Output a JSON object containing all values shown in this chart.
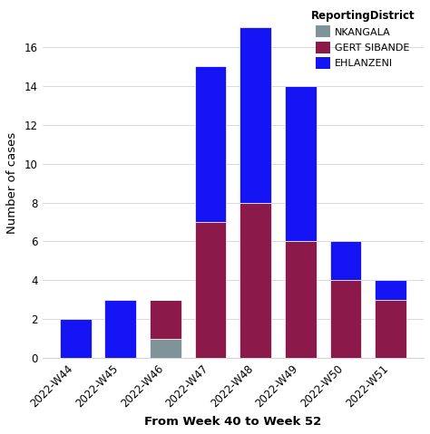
{
  "weeks": [
    "2022-W44",
    "2022-W45",
    "2022-W46",
    "2022-W47",
    "2022-W48",
    "2022-W49",
    "2022-W50",
    "2022-W51"
  ],
  "nkangala": [
    0,
    0,
    1,
    0,
    0,
    0,
    0,
    0
  ],
  "gert_sibande": [
    0,
    0,
    2,
    7,
    8,
    6,
    4,
    3
  ],
  "ehlanzeni": [
    2,
    3,
    0,
    8,
    9,
    8,
    2,
    1
  ],
  "color_nkangala": "#7f9499",
  "color_gert_sibande": "#8b1a4a",
  "color_ehlanzeni": "#1414f5",
  "xlabel": "From Week 40 to Week 52",
  "ylabel": "Number of cases",
  "legend_title": "ReportingDistrict",
  "ylim": [
    0,
    18
  ],
  "yticks": [
    0,
    2,
    4,
    6,
    8,
    10,
    12,
    14,
    16
  ],
  "plot_bg_color": "#ffffff",
  "fig_bg_color": "#ffffff",
  "bar_edge_color": "white",
  "bar_width": 0.7
}
